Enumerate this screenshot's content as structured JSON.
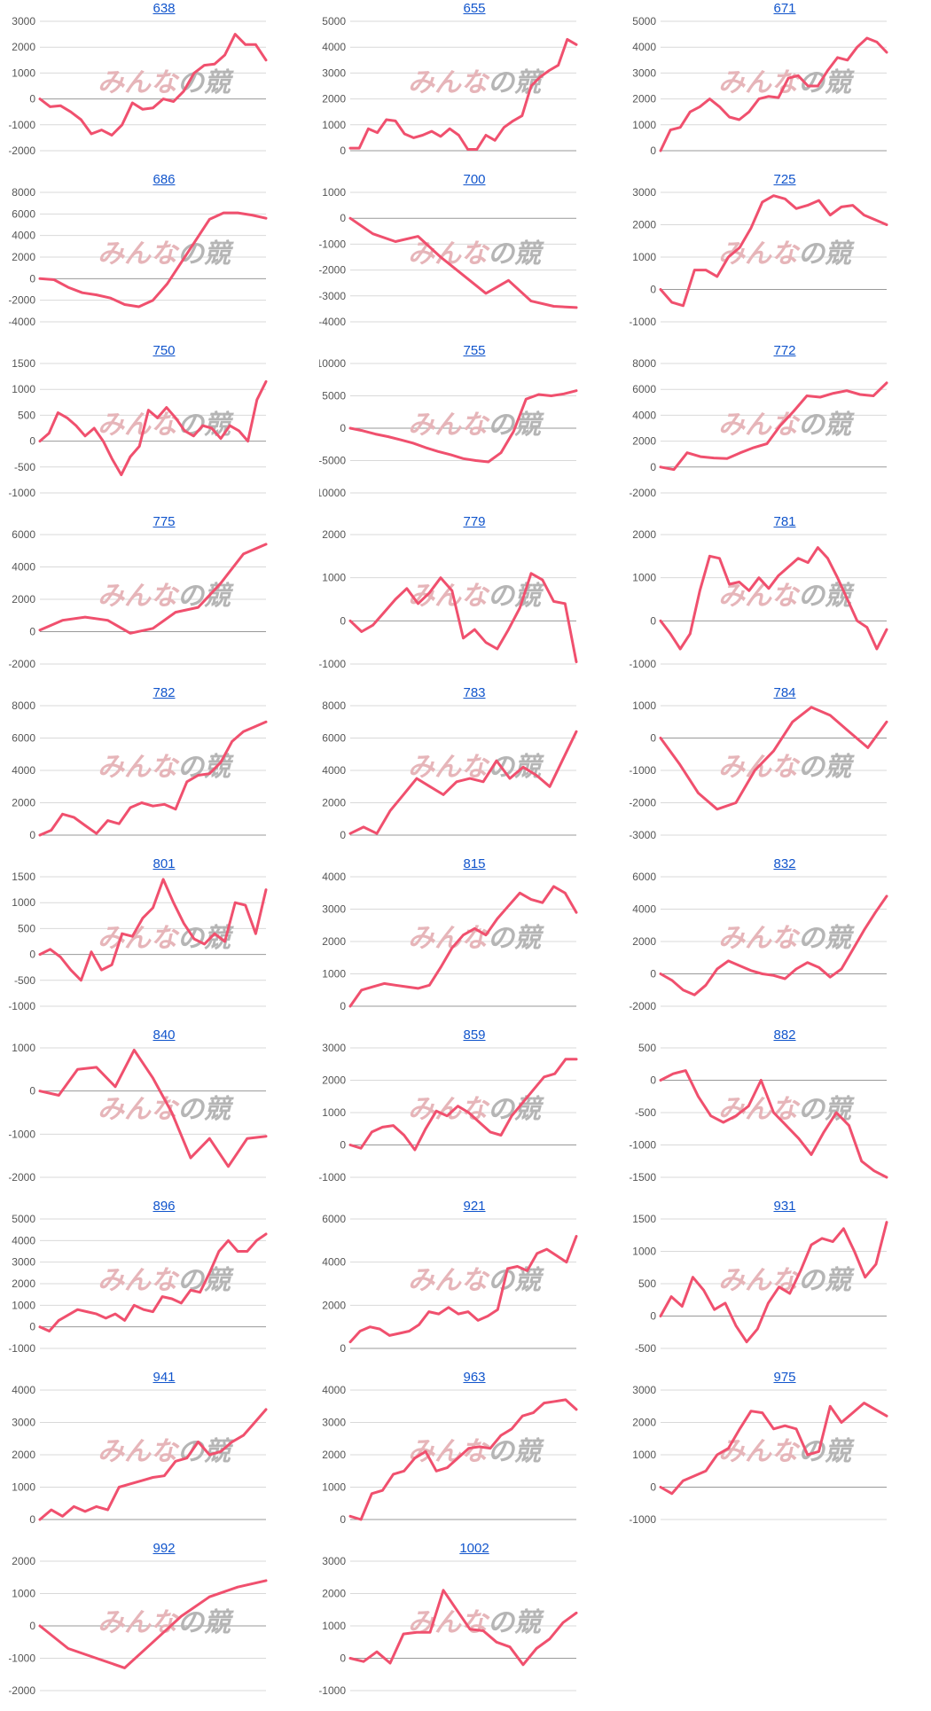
{
  "watermark": {
    "text_part1": "みんな",
    "text_part2": "の競",
    "color_part1": "#e6b5b9",
    "color_part2": "#b5b5b5"
  },
  "style": {
    "line_color": "#f0506e",
    "grid_color": "#d9d9d9",
    "zero_line_color": "#999999",
    "title_color": "#1155cc"
  },
  "chart_data": [
    {
      "type": "line",
      "title": "638",
      "ylim": [
        -2000,
        3000
      ],
      "yticks": [
        3000,
        2000,
        1000,
        0,
        -1000,
        -2000
      ],
      "y": [
        0,
        -300,
        -260,
        -500,
        -800,
        -1350,
        -1200,
        -1400,
        -1000,
        -150,
        -400,
        -350,
        0,
        -100,
        300,
        1000,
        1300,
        1350,
        1700,
        2500,
        2100,
        2100,
        1500
      ]
    },
    {
      "type": "line",
      "title": "655",
      "ylim": [
        0,
        5000
      ],
      "yticks": [
        5000,
        4000,
        3000,
        2000,
        1000,
        0
      ],
      "y": [
        100,
        100,
        850,
        700,
        1200,
        1150,
        650,
        500,
        600,
        750,
        550,
        850,
        600,
        50,
        50,
        600,
        400,
        900,
        1150,
        1350,
        2500,
        2850,
        3100,
        3300,
        4300,
        4100
      ]
    },
    {
      "type": "line",
      "title": "671",
      "ylim": [
        0,
        5000
      ],
      "yticks": [
        5000,
        4000,
        3000,
        2000,
        1000,
        0
      ],
      "y": [
        0,
        800,
        900,
        1500,
        1700,
        2000,
        1700,
        1300,
        1200,
        1500,
        2000,
        2100,
        2050,
        2800,
        2900,
        2500,
        2500,
        3100,
        3600,
        3500,
        4000,
        4350,
        4200,
        3800
      ]
    },
    {
      "type": "line",
      "title": "686",
      "ylim": [
        -4000,
        8000
      ],
      "yticks": [
        8000,
        6000,
        4000,
        2000,
        0,
        -2000,
        -4000
      ],
      "y": [
        0,
        -100,
        -800,
        -1300,
        -1500,
        -1800,
        -2400,
        -2600,
        -2000,
        -500,
        1500,
        3500,
        5500,
        6100,
        6100,
        5900,
        5600
      ]
    },
    {
      "type": "line",
      "title": "700",
      "ylim": [
        -4000,
        1000
      ],
      "yticks": [
        1000,
        0,
        -1000,
        -2000,
        -3000,
        -4000
      ],
      "y": [
        0,
        -600,
        -900,
        -700,
        -1500,
        -2200,
        -2900,
        -2400,
        -3200,
        -3400,
        -3450
      ]
    },
    {
      "type": "line",
      "title": "725",
      "ylim": [
        -1000,
        3000
      ],
      "yticks": [
        3000,
        2000,
        1000,
        0,
        -1000
      ],
      "y": [
        0,
        -400,
        -500,
        600,
        600,
        400,
        1000,
        1300,
        1900,
        2700,
        2900,
        2800,
        2500,
        2600,
        2750,
        2300,
        2550,
        2600,
        2300,
        2150,
        2000
      ]
    },
    {
      "type": "line",
      "title": "750",
      "ylim": [
        -1000,
        1500
      ],
      "yticks": [
        1500,
        1000,
        500,
        0,
        -500,
        -1000
      ],
      "y": [
        0,
        150,
        550,
        450,
        300,
        100,
        250,
        0,
        -350,
        -650,
        -300,
        -100,
        600,
        450,
        650,
        450,
        200,
        100,
        300,
        250,
        50,
        300,
        200,
        0,
        800,
        1150
      ]
    },
    {
      "type": "line",
      "title": "755",
      "ylim": [
        -10000,
        10000
      ],
      "yticks": [
        10000,
        5000,
        0,
        -5000,
        -10000
      ],
      "y": [
        0,
        -400,
        -900,
        -1300,
        -1800,
        -2300,
        -3000,
        -3600,
        -4100,
        -4700,
        -5000,
        -5200,
        -3800,
        -500,
        4500,
        5200,
        5000,
        5300,
        5800
      ]
    },
    {
      "type": "line",
      "title": "772",
      "ylim": [
        -2000,
        8000
      ],
      "yticks": [
        8000,
        6000,
        4000,
        2000,
        0,
        -2000
      ],
      "y": [
        0,
        -200,
        1100,
        800,
        700,
        650,
        1100,
        1500,
        1800,
        3200,
        4300,
        5500,
        5400,
        5700,
        5900,
        5600,
        5500,
        6500
      ]
    },
    {
      "type": "line",
      "title": "775",
      "ylim": [
        -2000,
        6000
      ],
      "yticks": [
        6000,
        4000,
        2000,
        0,
        -2000
      ],
      "y": [
        100,
        700,
        900,
        700,
        -100,
        200,
        1200,
        1500,
        3000,
        4800,
        5400
      ]
    },
    {
      "type": "line",
      "title": "779",
      "ylim": [
        -1000,
        2000
      ],
      "yticks": [
        2000,
        1000,
        0,
        -1000
      ],
      "y": [
        0,
        -250,
        -100,
        200,
        500,
        750,
        400,
        650,
        1000,
        700,
        -400,
        -200,
        -500,
        -650,
        -200,
        300,
        1100,
        950,
        450,
        400,
        -950
      ]
    },
    {
      "type": "line",
      "title": "781",
      "ylim": [
        -1000,
        2000
      ],
      "yticks": [
        2000,
        1000,
        0,
        -1000
      ],
      "y": [
        0,
        -300,
        -650,
        -300,
        700,
        1500,
        1450,
        850,
        900,
        700,
        1000,
        750,
        1050,
        1250,
        1450,
        1350,
        1700,
        1450,
        1000,
        500,
        0,
        -150,
        -650,
        -200
      ]
    },
    {
      "type": "line",
      "title": "782",
      "ylim": [
        0,
        8000
      ],
      "yticks": [
        8000,
        6000,
        4000,
        2000,
        0
      ],
      "y": [
        0,
        300,
        1300,
        1100,
        600,
        100,
        900,
        700,
        1700,
        2000,
        1800,
        1900,
        1600,
        3300,
        3700,
        3800,
        4500,
        5800,
        6400,
        6700,
        7000
      ]
    },
    {
      "type": "line",
      "title": "783",
      "ylim": [
        0,
        8000
      ],
      "yticks": [
        8000,
        6000,
        4000,
        2000,
        0
      ],
      "y": [
        100,
        500,
        100,
        1500,
        2500,
        3500,
        3000,
        2500,
        3300,
        3500,
        3300,
        4600,
        3500,
        4200,
        3700,
        3000,
        4700,
        6400
      ]
    },
    {
      "type": "line",
      "title": "784",
      "ylim": [
        -3000,
        1000
      ],
      "yticks": [
        1000,
        0,
        -1000,
        -2000,
        -3000
      ],
      "y": [
        0,
        -800,
        -1700,
        -2200,
        -2000,
        -1000,
        -400,
        500,
        950,
        700,
        200,
        -300,
        500
      ]
    },
    {
      "type": "line",
      "title": "801",
      "ylim": [
        -1000,
        1500
      ],
      "yticks": [
        1500,
        1000,
        500,
        0,
        -500,
        -1000
      ],
      "y": [
        0,
        100,
        -50,
        -300,
        -500,
        50,
        -300,
        -200,
        400,
        350,
        700,
        900,
        1450,
        1000,
        600,
        300,
        200,
        400,
        250,
        1000,
        950,
        400,
        1250
      ]
    },
    {
      "type": "line",
      "title": "815",
      "ylim": [
        0,
        4000
      ],
      "yticks": [
        4000,
        3000,
        2000,
        1000,
        0
      ],
      "y": [
        0,
        500,
        600,
        700,
        650,
        600,
        550,
        650,
        1200,
        1800,
        2200,
        2400,
        2200,
        2700,
        3100,
        3500,
        3300,
        3200,
        3700,
        3500,
        2900
      ]
    },
    {
      "type": "line",
      "title": "832",
      "ylim": [
        -2000,
        6000
      ],
      "yticks": [
        6000,
        4000,
        2000,
        0,
        -2000
      ],
      "y": [
        0,
        -400,
        -1000,
        -1300,
        -700,
        300,
        800,
        500,
        200,
        0,
        -100,
        -300,
        300,
        700,
        400,
        -200,
        300,
        1500,
        2700,
        3800,
        4800
      ]
    },
    {
      "type": "line",
      "title": "840",
      "ylim": [
        -2000,
        1000
      ],
      "yticks": [
        1000,
        0,
        -1000,
        -2000
      ],
      "y": [
        0,
        -100,
        500,
        550,
        100,
        950,
        300,
        -500,
        -1550,
        -1100,
        -1750,
        -1100,
        -1050
      ]
    },
    {
      "type": "line",
      "title": "859",
      "ylim": [
        -1000,
        3000
      ],
      "yticks": [
        3000,
        2000,
        1000,
        0,
        -1000
      ],
      "y": [
        0,
        -100,
        400,
        550,
        600,
        300,
        -150,
        500,
        1050,
        900,
        1200,
        1000,
        700,
        400,
        300,
        900,
        1300,
        1700,
        2100,
        2200,
        2650,
        2650
      ]
    },
    {
      "type": "line",
      "title": "882",
      "ylim": [
        -1500,
        500
      ],
      "yticks": [
        500,
        0,
        -500,
        -1000,
        -1500
      ],
      "y": [
        0,
        100,
        150,
        -250,
        -550,
        -650,
        -550,
        -400,
        0,
        -500,
        -700,
        -900,
        -1150,
        -800,
        -500,
        -700,
        -1250,
        -1400,
        -1500
      ]
    },
    {
      "type": "line",
      "title": "896",
      "ylim": [
        -1000,
        5000
      ],
      "yticks": [
        5000,
        4000,
        3000,
        2000,
        1000,
        0,
        -1000
      ],
      "y": [
        0,
        -200,
        300,
        550,
        800,
        700,
        600,
        400,
        600,
        300,
        1000,
        800,
        700,
        1400,
        1300,
        1100,
        1700,
        1600,
        2500,
        3500,
        4000,
        3500,
        3500,
        4000,
        4300
      ]
    },
    {
      "type": "line",
      "title": "921",
      "ylim": [
        0,
        6000
      ],
      "yticks": [
        6000,
        4000,
        2000,
        0
      ],
      "y": [
        300,
        800,
        1000,
        900,
        600,
        700,
        800,
        1100,
        1700,
        1600,
        1900,
        1600,
        1700,
        1300,
        1500,
        1800,
        3700,
        3800,
        3600,
        4400,
        4600,
        4300,
        4000,
        5200
      ]
    },
    {
      "type": "line",
      "title": "931",
      "ylim": [
        -500,
        1500
      ],
      "yticks": [
        1500,
        1000,
        500,
        0,
        -500
      ],
      "y": [
        0,
        300,
        150,
        600,
        400,
        100,
        200,
        -150,
        -400,
        -200,
        200,
        450,
        350,
        700,
        1100,
        1200,
        1150,
        1350,
        1000,
        600,
        800,
        1450
      ]
    },
    {
      "type": "line",
      "title": "941",
      "ylim": [
        0,
        4000
      ],
      "yticks": [
        4000,
        3000,
        2000,
        1000,
        0
      ],
      "y": [
        0,
        300,
        100,
        400,
        250,
        400,
        300,
        1000,
        1100,
        1200,
        1300,
        1350,
        1800,
        1900,
        2400,
        2000,
        2100,
        2400,
        2600,
        3000,
        3400
      ]
    },
    {
      "type": "line",
      "title": "963",
      "ylim": [
        0,
        4000
      ],
      "yticks": [
        4000,
        3000,
        2000,
        1000,
        0
      ],
      "y": [
        100,
        0,
        800,
        900,
        1400,
        1500,
        1900,
        2100,
        1500,
        1600,
        1900,
        2200,
        2250,
        2200,
        2600,
        2800,
        3200,
        3300,
        3600,
        3650,
        3700,
        3400
      ]
    },
    {
      "type": "line",
      "title": "975",
      "ylim": [
        -1000,
        3000
      ],
      "yticks": [
        3000,
        2000,
        1000,
        0,
        -1000
      ],
      "y": [
        0,
        -200,
        200,
        350,
        500,
        1000,
        1200,
        1800,
        2350,
        2300,
        1800,
        1900,
        1800,
        1000,
        1100,
        2500,
        2000,
        2300,
        2600,
        2400,
        2200
      ]
    },
    {
      "type": "line",
      "title": "992",
      "ylim": [
        -2000,
        2000
      ],
      "yticks": [
        2000,
        1000,
        0,
        -1000,
        -2000
      ],
      "y": [
        0,
        -700,
        -1000,
        -1300,
        -500,
        300,
        900,
        1200,
        1400
      ]
    },
    {
      "type": "line",
      "title": "1002",
      "ylim": [
        -1000,
        3000
      ],
      "yticks": [
        3000,
        2000,
        1000,
        0,
        -1000
      ],
      "y": [
        0,
        -100,
        200,
        -150,
        750,
        800,
        800,
        2100,
        1500,
        900,
        850,
        500,
        350,
        -200,
        300,
        600,
        1100,
        1400
      ]
    }
  ]
}
